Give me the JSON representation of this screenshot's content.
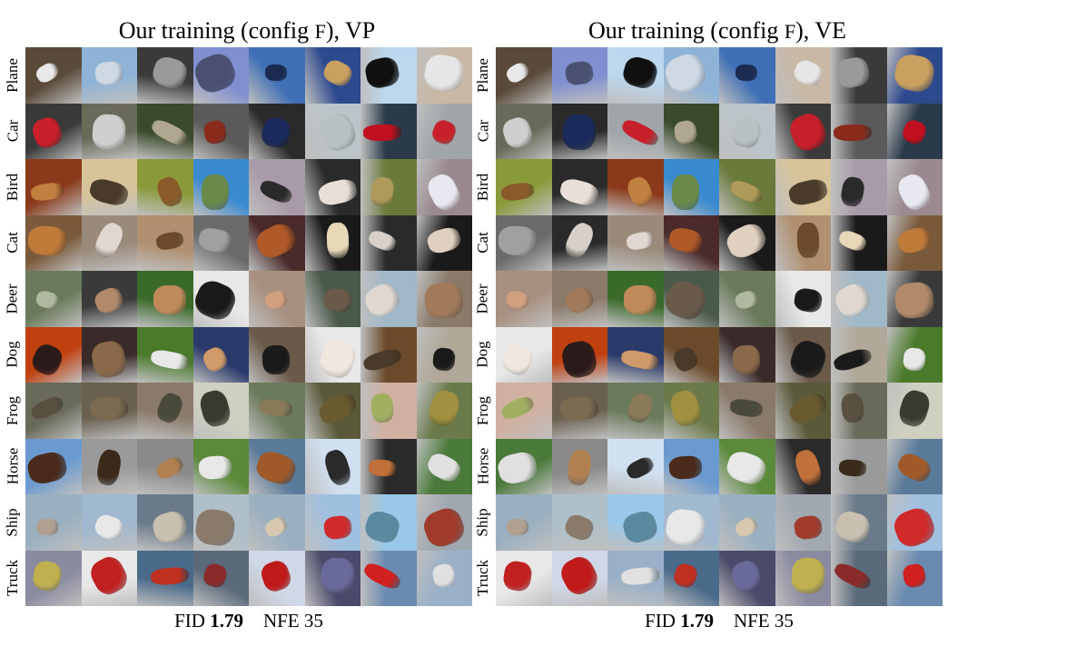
{
  "panels": [
    {
      "title_prefix": "Our training (config ",
      "title_config": "F",
      "title_suffix": "), VP",
      "fid_label": "FID",
      "fid_value": "1.79",
      "nfe_label": "NFE",
      "nfe_value": "35"
    },
    {
      "title_prefix": "Our training (config ",
      "title_config": "F",
      "title_suffix": "), VE",
      "fid_label": "FID",
      "fid_value": "1.79",
      "nfe_label": "NFE",
      "nfe_value": "35"
    }
  ],
  "rows": [
    "Plane",
    "Car",
    "Bird",
    "Cat",
    "Deer",
    "Dog",
    "Frog",
    "Horse",
    "Ship",
    "Truck"
  ],
  "palettes": {
    "Plane": {
      "bg": [
        "#5a4a3a",
        "#8fb3d6",
        "#3a3a3a",
        "#7f8fd0",
        "#3f6fb5",
        "#2e4a8f",
        "#bcd7ee",
        "#c9b8a6"
      ],
      "fg": [
        "#e8e8e8",
        "#cfd9e3",
        "#9a9a9a",
        "#4a5070",
        "#1a2a50",
        "#c9a060",
        "#101010",
        "#e6e6e6"
      ]
    },
    "Car": {
      "bg": [
        "#3a3a3a",
        "#6a6a5a",
        "#3a4a2a",
        "#5a5a5a",
        "#2a2a2a",
        "#bcc4c9",
        "#2a3a4a",
        "#9fa5a8"
      ],
      "fg": [
        "#c8202a",
        "#cfcfcf",
        "#b0a890",
        "#8a2a1a",
        "#1a2a5a",
        "#b8c0c2",
        "#c01020",
        "#c8202a"
      ]
    },
    "Bird": {
      "bg": [
        "#8a3a1a",
        "#d8c49a",
        "#8a9a3a",
        "#3a8ad0",
        "#a89aa8",
        "#2a2a2a",
        "#6a7a3a",
        "#9a8a90"
      ],
      "fg": [
        "#c08040",
        "#4a3a2a",
        "#8a5a2a",
        "#6a8a4a",
        "#2a2a2a",
        "#e8e0d8",
        "#b09a5a",
        "#e8e8f0"
      ]
    },
    "Cat": {
      "bg": [
        "#7a5a3a",
        "#9a8a7a",
        "#b09070",
        "#6a6a6a",
        "#4a2a2a",
        "#1a1a1a",
        "#2a2a2a",
        "#1a1a1a"
      ],
      "fg": [
        "#c07a3a",
        "#e0d8d0",
        "#6a4a2a",
        "#a0a0a0",
        "#b05a2a",
        "#e8d8b8",
        "#d8d0c8",
        "#e0d0c0"
      ]
    },
    "Deer": {
      "bg": [
        "#6a7a5a",
        "#3a3a3a",
        "#3a6a2a",
        "#e8e8e8",
        "#a89080",
        "#4a5a4a",
        "#a0b8c8",
        "#8a7a6a"
      ],
      "fg": [
        "#b0b8a0",
        "#b08a6a",
        "#c08a5a",
        "#1a1a1a",
        "#d0a080",
        "#6a5a4a",
        "#e0d8d0",
        "#a07a5a"
      ]
    },
    "Dog": {
      "bg": [
        "#c04010",
        "#3a2a2a",
        "#4a7a2a",
        "#2a3a6a",
        "#6a5a4a",
        "#e8e8e8",
        "#6a4a2a",
        "#b0a898"
      ],
      "fg": [
        "#2a1a1a",
        "#8a6a4a",
        "#e8e8e8",
        "#d09a6a",
        "#1a1a1a",
        "#f0e8e0",
        "#4a3a2a",
        "#1a1a1a"
      ]
    },
    "Frog": {
      "bg": [
        "#6a6a5a",
        "#6a6050",
        "#8a7a6a",
        "#d0d0c0",
        "#6a7a5a",
        "#5a5a3a",
        "#d0b0a0",
        "#6a7a4a"
      ],
      "fg": [
        "#5a5040",
        "#7a6a50",
        "#4a4a3a",
        "#3a3a30",
        "#8a7a5a",
        "#6a5a30",
        "#a0b060",
        "#a09040"
      ]
    },
    "Horse": {
      "bg": [
        "#6a9ad0",
        "#9a9a9a",
        "#8a8a8a",
        "#5a8a3a",
        "#5a7a9a",
        "#d0e0f0",
        "#2a2a2a",
        "#4a7a3a"
      ],
      "fg": [
        "#4a2a1a",
        "#3a2a1a",
        "#b08050",
        "#e8e8e8",
        "#a05a2a",
        "#2a2a2a",
        "#c0703a",
        "#e0e0e0"
      ]
    },
    "Ship": {
      "bg": [
        "#9ab0c0",
        "#a0b8d0",
        "#6a7a8a",
        "#b0c0c8",
        "#9ab0c0",
        "#a0c0e0",
        "#9ac8e8",
        "#a0a8b0"
      ],
      "fg": [
        "#b0a090",
        "#e8e8e8",
        "#c8c0b0",
        "#8a7a6a",
        "#d8c8b0",
        "#d02a2a",
        "#5a8aa0",
        "#a03a2a"
      ]
    },
    "Truck": {
      "bg": [
        "#8a8aa0",
        "#e8e8e8",
        "#4a6a8a",
        "#5a6a7a",
        "#d0d8e8",
        "#4a4a6a",
        "#6a8ab0",
        "#9ab0c8"
      ],
      "fg": [
        "#c0b050",
        "#c02020",
        "#c03020",
        "#8a2a2a",
        "#c01a1a",
        "#6a6a9a",
        "#d02020",
        "#e0e0e0"
      ]
    }
  }
}
